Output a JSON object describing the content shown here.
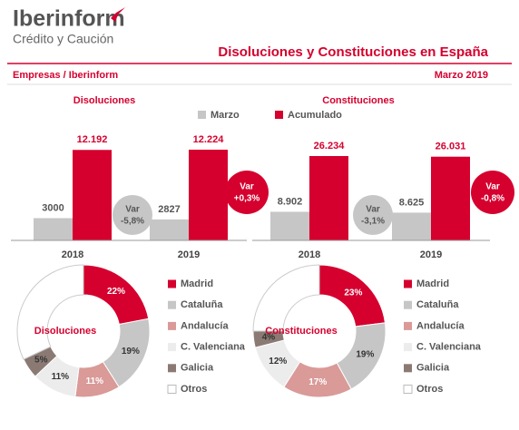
{
  "header": {
    "logo": "Iberinform",
    "logo_sub": "Crédito y Caución",
    "title": "Disoluciones y Constituciones en España",
    "source": "Empresas / Iberinform",
    "date": "Marzo 2019"
  },
  "chart_data": [
    {
      "type": "bar",
      "title": "Disoluciones",
      "categories": [
        "2018",
        "2019"
      ],
      "series": [
        {
          "name": "Marzo",
          "color": "#c6c6c6",
          "values": [
            3000,
            2827
          ],
          "value_labels": [
            "3000",
            "2827"
          ]
        },
        {
          "name": "Acumulado",
          "color": "#d5002e",
          "values": [
            12192,
            12224
          ],
          "value_labels": [
            "12.192",
            "12.224"
          ]
        }
      ],
      "variations": [
        {
          "title": "Var",
          "value": -5.8,
          "label": "-5,8%",
          "color": "#c6c6c6"
        },
        {
          "title": "Var",
          "value": 0.3,
          "label": "+0,3%",
          "color": "#d5002e"
        }
      ]
    },
    {
      "type": "bar",
      "title": "Constituciones",
      "categories": [
        "2018",
        "2019"
      ],
      "series": [
        {
          "color": "#c6c6c6",
          "values": [
            8902,
            8625
          ],
          "value_labels": [
            "8.902",
            "8.625"
          ]
        },
        {
          "color": "#d5002e",
          "values": [
            26234,
            26031
          ],
          "value_labels": [
            "26.234",
            "26.031"
          ]
        }
      ],
      "variations": [
        {
          "title": "Var",
          "value": -3.1,
          "label": "-3,1%",
          "color": "#c6c6c6"
        },
        {
          "title": "Var",
          "value": -0.8,
          "label": "-0,8%",
          "color": "#d5002e"
        }
      ]
    },
    {
      "type": "donut",
      "title": "Disoluciones",
      "categories": [
        "Madrid",
        "Cataluña",
        "Andalucía",
        "C. Valenciana",
        "Galicia",
        "Otros"
      ],
      "values": [
        22,
        19,
        11,
        11,
        5,
        32
      ],
      "value_labels": [
        "22%",
        "19%",
        "11%",
        "11%",
        "5%",
        null
      ],
      "colors": [
        "#d5002e",
        "#c6c6c6",
        "#d99a98",
        "#ececec",
        "#8b7a74",
        "#ffffff"
      ]
    },
    {
      "type": "donut",
      "title": "Constituciones",
      "categories": [
        "Madrid",
        "Cataluña",
        "Andalucía",
        "C. Valenciana",
        "Galicia",
        "Otros"
      ],
      "values": [
        23,
        19,
        17,
        12,
        4,
        25
      ],
      "value_labels": [
        "23%",
        "19%",
        "17%",
        "12%",
        "4%",
        null
      ],
      "colors": [
        "#d5002e",
        "#c6c6c6",
        "#d99a98",
        "#ececec",
        "#8b7a74",
        "#ffffff"
      ]
    }
  ]
}
